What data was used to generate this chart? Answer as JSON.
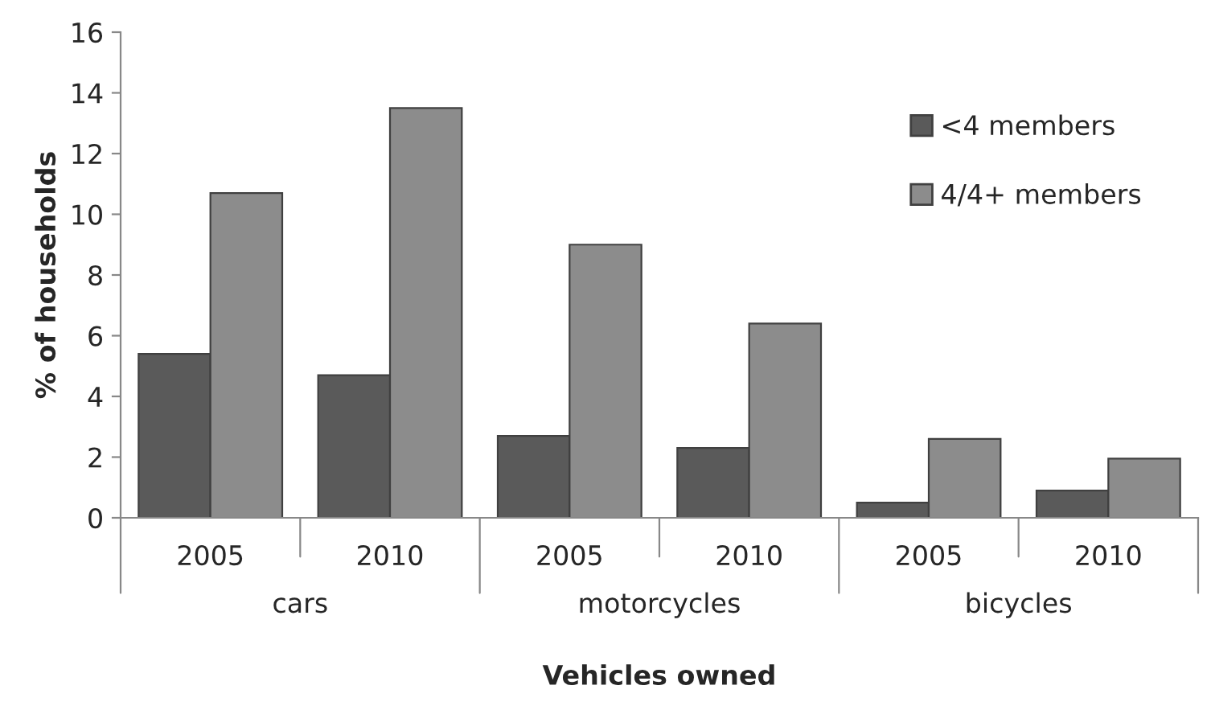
{
  "chart_data": {
    "type": "bar",
    "xlabel": "Vehicles owned",
    "ylabel": "% of households",
    "categories": [
      "2005",
      "2010",
      "2005",
      "2010",
      "2005",
      "2010"
    ],
    "series": [
      {
        "name": "<4 members",
        "color": "#5a5a5a",
        "values": [
          5.4,
          4.7,
          2.7,
          2.3,
          0.5,
          0.9
        ]
      },
      {
        "name": "4/4+ members",
        "color": "#8c8c8c",
        "values": [
          10.7,
          13.5,
          9.0,
          6.4,
          2.6,
          1.95
        ]
      }
    ],
    "annotations": [
      "cars",
      "motorcycles",
      "bicycles"
    ],
    "ylim": [
      0,
      16
    ],
    "yticks": [
      0,
      2,
      4,
      6,
      8,
      10,
      12,
      14,
      16
    ],
    "grid": false,
    "legend": "top right"
  }
}
